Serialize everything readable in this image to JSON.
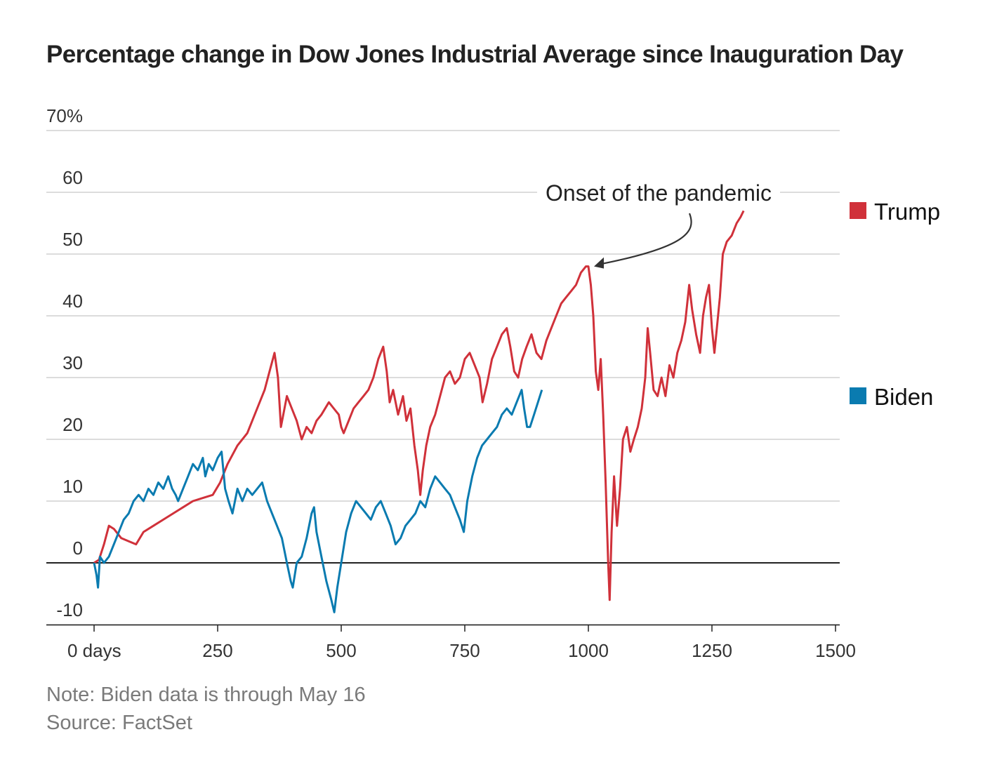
{
  "chart_data": {
    "type": "line",
    "title": "Percentage change in Dow Jones Industrial Average since Inauguration Day",
    "xlabel": "",
    "ylabel": "",
    "x_ticks": [
      {
        "value": 0,
        "label": "0 days"
      },
      {
        "value": 250,
        "label": "250"
      },
      {
        "value": 500,
        "label": "500"
      },
      {
        "value": 750,
        "label": "750"
      },
      {
        "value": 1000,
        "label": "1000"
      },
      {
        "value": 1250,
        "label": "1250"
      },
      {
        "value": 1500,
        "label": "1500"
      }
    ],
    "y_ticks": [
      {
        "value": 70,
        "label": "70%"
      },
      {
        "value": 60,
        "label": "60"
      },
      {
        "value": 50,
        "label": "50"
      },
      {
        "value": 40,
        "label": "40"
      },
      {
        "value": 30,
        "label": "30"
      },
      {
        "value": 20,
        "label": "20"
      },
      {
        "value": 10,
        "label": "10"
      },
      {
        "value": 0,
        "label": "0"
      },
      {
        "value": -10,
        "label": "-10"
      }
    ],
    "xlim": [
      0,
      1500
    ],
    "ylim": [
      -10,
      70
    ],
    "grid": true,
    "series": [
      {
        "name": "Trump",
        "color": "#d0313a",
        "points": [
          [
            0,
            0
          ],
          [
            10,
            0.5
          ],
          [
            20,
            3
          ],
          [
            30,
            6
          ],
          [
            40,
            5.5
          ],
          [
            55,
            4
          ],
          [
            70,
            3.5
          ],
          [
            85,
            3
          ],
          [
            100,
            5
          ],
          [
            120,
            6
          ],
          [
            140,
            7
          ],
          [
            160,
            8
          ],
          [
            180,
            9
          ],
          [
            200,
            10
          ],
          [
            220,
            10.5
          ],
          [
            240,
            11
          ],
          [
            255,
            13
          ],
          [
            270,
            16
          ],
          [
            290,
            19
          ],
          [
            310,
            21
          ],
          [
            330,
            25
          ],
          [
            345,
            28
          ],
          [
            355,
            31
          ],
          [
            365,
            34
          ],
          [
            372,
            30
          ],
          [
            378,
            22
          ],
          [
            390,
            27
          ],
          [
            400,
            25
          ],
          [
            410,
            23
          ],
          [
            420,
            20
          ],
          [
            430,
            22
          ],
          [
            440,
            21
          ],
          [
            450,
            23
          ],
          [
            460,
            24
          ],
          [
            475,
            26
          ],
          [
            485,
            25
          ],
          [
            495,
            24
          ],
          [
            500,
            22
          ],
          [
            505,
            21
          ],
          [
            515,
            23
          ],
          [
            525,
            25
          ],
          [
            535,
            26
          ],
          [
            545,
            27
          ],
          [
            555,
            28
          ],
          [
            565,
            30
          ],
          [
            575,
            33
          ],
          [
            585,
            35
          ],
          [
            592,
            31
          ],
          [
            598,
            26
          ],
          [
            605,
            28
          ],
          [
            615,
            24
          ],
          [
            625,
            27
          ],
          [
            632,
            23
          ],
          [
            640,
            25
          ],
          [
            648,
            19
          ],
          [
            655,
            15
          ],
          [
            660,
            11
          ],
          [
            665,
            15
          ],
          [
            672,
            19
          ],
          [
            680,
            22
          ],
          [
            690,
            24
          ],
          [
            700,
            27
          ],
          [
            710,
            30
          ],
          [
            720,
            31
          ],
          [
            730,
            29
          ],
          [
            740,
            30
          ],
          [
            750,
            33
          ],
          [
            760,
            34
          ],
          [
            770,
            32
          ],
          [
            780,
            30
          ],
          [
            786,
            26
          ],
          [
            795,
            29
          ],
          [
            805,
            33
          ],
          [
            815,
            35
          ],
          [
            825,
            37
          ],
          [
            835,
            38
          ],
          [
            842,
            35
          ],
          [
            850,
            31
          ],
          [
            858,
            30
          ],
          [
            866,
            33
          ],
          [
            875,
            35
          ],
          [
            885,
            37
          ],
          [
            895,
            34
          ],
          [
            905,
            33
          ],
          [
            915,
            36
          ],
          [
            925,
            38
          ],
          [
            935,
            40
          ],
          [
            945,
            42
          ],
          [
            955,
            43
          ],
          [
            965,
            44
          ],
          [
            975,
            45
          ],
          [
            985,
            47
          ],
          [
            995,
            48
          ],
          [
            1000,
            48
          ],
          [
            1005,
            45
          ],
          [
            1010,
            40
          ],
          [
            1015,
            31
          ],
          [
            1020,
            28
          ],
          [
            1025,
            33
          ],
          [
            1030,
            24
          ],
          [
            1035,
            13
          ],
          [
            1040,
            0
          ],
          [
            1043,
            -6
          ],
          [
            1047,
            5
          ],
          [
            1052,
            14
          ],
          [
            1058,
            6
          ],
          [
            1064,
            12
          ],
          [
            1070,
            20
          ],
          [
            1078,
            22
          ],
          [
            1085,
            18
          ],
          [
            1092,
            20
          ],
          [
            1100,
            22
          ],
          [
            1108,
            25
          ],
          [
            1115,
            30
          ],
          [
            1120,
            38
          ],
          [
            1125,
            34
          ],
          [
            1132,
            28
          ],
          [
            1140,
            27
          ],
          [
            1148,
            30
          ],
          [
            1156,
            27
          ],
          [
            1164,
            32
          ],
          [
            1172,
            30
          ],
          [
            1180,
            34
          ],
          [
            1188,
            36
          ],
          [
            1196,
            39
          ],
          [
            1204,
            45
          ],
          [
            1210,
            41
          ],
          [
            1218,
            37
          ],
          [
            1226,
            34
          ],
          [
            1232,
            40
          ],
          [
            1238,
            43
          ],
          [
            1244,
            45
          ],
          [
            1250,
            38
          ],
          [
            1255,
            34
          ],
          [
            1260,
            38
          ],
          [
            1266,
            43
          ],
          [
            1272,
            50
          ],
          [
            1280,
            52
          ],
          [
            1290,
            53
          ],
          [
            1300,
            55
          ],
          [
            1308,
            56
          ],
          [
            1314,
            57
          ]
        ]
      },
      {
        "name": "Biden",
        "color": "#0a7bb0",
        "points": [
          [
            0,
            0
          ],
          [
            5,
            -2
          ],
          [
            8,
            -4
          ],
          [
            12,
            1
          ],
          [
            20,
            0
          ],
          [
            30,
            1
          ],
          [
            40,
            3
          ],
          [
            50,
            5
          ],
          [
            60,
            7
          ],
          [
            70,
            8
          ],
          [
            80,
            10
          ],
          [
            90,
            11
          ],
          [
            100,
            10
          ],
          [
            110,
            12
          ],
          [
            120,
            11
          ],
          [
            130,
            13
          ],
          [
            140,
            12
          ],
          [
            150,
            14
          ],
          [
            158,
            12
          ],
          [
            165,
            11
          ],
          [
            170,
            10
          ],
          [
            180,
            12
          ],
          [
            190,
            14
          ],
          [
            200,
            16
          ],
          [
            210,
            15
          ],
          [
            220,
            17
          ],
          [
            225,
            14
          ],
          [
            232,
            16
          ],
          [
            240,
            15
          ],
          [
            250,
            17
          ],
          [
            258,
            18
          ],
          [
            265,
            12
          ],
          [
            272,
            10
          ],
          [
            280,
            8
          ],
          [
            290,
            12
          ],
          [
            300,
            10
          ],
          [
            310,
            12
          ],
          [
            320,
            11
          ],
          [
            330,
            12
          ],
          [
            340,
            13
          ],
          [
            350,
            10
          ],
          [
            360,
            8
          ],
          [
            370,
            6
          ],
          [
            380,
            4
          ],
          [
            390,
            0
          ],
          [
            398,
            -3
          ],
          [
            402,
            -4
          ],
          [
            410,
            0
          ],
          [
            420,
            1
          ],
          [
            430,
            4
          ],
          [
            440,
            8
          ],
          [
            445,
            9
          ],
          [
            450,
            5
          ],
          [
            460,
            1
          ],
          [
            470,
            -3
          ],
          [
            480,
            -6
          ],
          [
            486,
            -8
          ],
          [
            492,
            -4
          ],
          [
            500,
            0
          ],
          [
            510,
            5
          ],
          [
            520,
            8
          ],
          [
            530,
            10
          ],
          [
            540,
            9
          ],
          [
            550,
            8
          ],
          [
            560,
            7
          ],
          [
            570,
            9
          ],
          [
            580,
            10
          ],
          [
            590,
            8
          ],
          [
            600,
            6
          ],
          [
            610,
            3
          ],
          [
            620,
            4
          ],
          [
            630,
            6
          ],
          [
            640,
            7
          ],
          [
            650,
            8
          ],
          [
            660,
            10
          ],
          [
            670,
            9
          ],
          [
            680,
            12
          ],
          [
            690,
            14
          ],
          [
            700,
            13
          ],
          [
            710,
            12
          ],
          [
            720,
            11
          ],
          [
            730,
            9
          ],
          [
            740,
            7
          ],
          [
            748,
            5
          ],
          [
            755,
            10
          ],
          [
            765,
            14
          ],
          [
            775,
            17
          ],
          [
            785,
            19
          ],
          [
            795,
            20
          ],
          [
            805,
            21
          ],
          [
            815,
            22
          ],
          [
            825,
            24
          ],
          [
            835,
            25
          ],
          [
            845,
            24
          ],
          [
            855,
            26
          ],
          [
            865,
            28
          ],
          [
            870,
            25
          ],
          [
            876,
            22
          ],
          [
            882,
            22
          ],
          [
            890,
            24
          ],
          [
            898,
            26
          ],
          [
            906,
            28
          ]
        ]
      }
    ],
    "annotation": {
      "text": "Onset of the pandemic",
      "x": 1000,
      "y": 48
    }
  },
  "footer": {
    "note": "Note: Biden data is through May 16",
    "source": "Source: FactSet"
  }
}
